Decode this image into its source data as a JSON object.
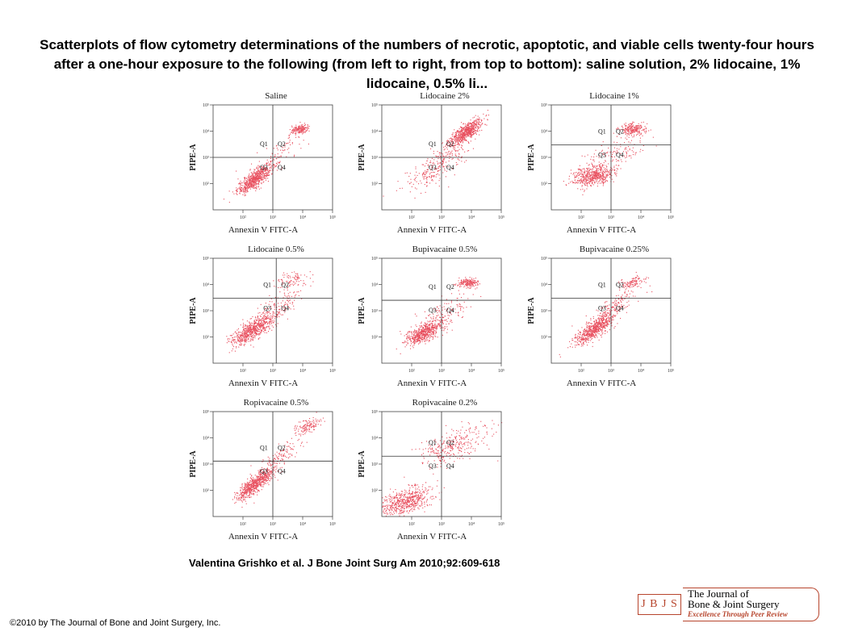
{
  "page": {
    "title": "Scatterplots of flow cytometry determinations of the numbers of necrotic, apoptotic, and viable cells twenty-four hours after a one-hour exposure to the following (from left to right, from top to bottom): saline solution, 2% lidocaine, 1% lidocaine, 0.5% li...",
    "citation": "Valentina Grishko et al. J Bone Joint Surg Am 2010;92:609-618",
    "copyright": "©2010 by The Journal of Bone and Joint Surgery, Inc."
  },
  "logo": {
    "abbr": "J B J S",
    "line1": "The Journal of",
    "line2": "Bone & Joint Surgery",
    "tagline": "Excellence Through Peer Review",
    "color": "#b7452d"
  },
  "colors": {
    "dots": "#e8505f",
    "axes": "#444444"
  },
  "chart_data": [
    {
      "type": "scatter",
      "title": "Saline",
      "xlabel": "Annexin V FITC-A",
      "ylabel": "PIPE-A",
      "x_scale": "log",
      "y_scale": "log",
      "xlim": [
        10,
        100000
      ],
      "ylim": [
        10,
        100000
      ],
      "x_ticks": [
        "10²",
        "10³",
        "10⁴",
        "10⁵"
      ],
      "y_ticks": [
        "10²",
        "10³",
        "10⁴",
        "10⁵"
      ],
      "quadrants": [
        "Q1",
        "Q2",
        "Q3",
        "Q4"
      ],
      "gate": {
        "x": 1000,
        "y": 1000
      },
      "clusters": [
        {
          "x": 250,
          "y": 160,
          "spread": 0.3,
          "share": 0.72,
          "tilt": 0.8
        },
        {
          "x": 8000,
          "y": 12000,
          "spread": 0.16,
          "share": 0.18,
          "tilt": 0.2
        },
        {
          "x": 1500,
          "y": 1300,
          "spread": 0.45,
          "share": 0.1,
          "tilt": 0.9
        }
      ]
    },
    {
      "type": "scatter",
      "title": "Lidocaine 2%",
      "xlabel": "Annexin V FITC-A",
      "ylabel": "PIPE-A",
      "x_scale": "log",
      "y_scale": "log",
      "xlim": [
        10,
        100000
      ],
      "ylim": [
        10,
        100000
      ],
      "x_ticks": [
        "10²",
        "10³",
        "10⁴",
        "10⁵"
      ],
      "y_ticks": [
        "10²",
        "10³",
        "10⁴",
        "10⁵"
      ],
      "quadrants": [
        "Q1",
        "Q2",
        "Q3",
        "Q4"
      ],
      "gate": {
        "x": 1000,
        "y": 1000
      },
      "clusters": [
        {
          "x": 6000,
          "y": 9000,
          "spread": 0.28,
          "share": 0.7,
          "tilt": 0.7
        },
        {
          "x": 700,
          "y": 500,
          "spread": 0.55,
          "share": 0.3,
          "tilt": 0.8
        }
      ]
    },
    {
      "type": "scatter",
      "title": "Lidocaine 1%",
      "xlabel": "Annexin V FITC-A",
      "ylabel": "PIPE-A",
      "x_scale": "log",
      "y_scale": "log",
      "xlim": [
        10,
        100000
      ],
      "ylim": [
        10,
        100000
      ],
      "x_ticks": [
        "10²",
        "10³",
        "10⁴",
        "10⁵"
      ],
      "y_ticks": [
        "10²",
        "10³",
        "10⁴",
        "10⁵"
      ],
      "quadrants": [
        "Q1",
        "Q2",
        "Q3",
        "Q4"
      ],
      "gate": {
        "x": 1000,
        "y": 3000
      },
      "clusters": [
        {
          "x": 250,
          "y": 200,
          "spread": 0.35,
          "share": 0.6,
          "tilt": 0.2
        },
        {
          "x": 5000,
          "y": 12000,
          "spread": 0.22,
          "share": 0.25,
          "tilt": 0.1
        },
        {
          "x": 1500,
          "y": 1500,
          "spread": 0.55,
          "share": 0.15,
          "tilt": 0.4
        }
      ]
    },
    {
      "type": "scatter",
      "title": "Lidocaine 0.5%",
      "xlabel": "Annexin V FITC-A",
      "ylabel": "PIPE-A",
      "x_scale": "log",
      "y_scale": "log",
      "xlim": [
        10,
        100000
      ],
      "ylim": [
        10,
        100000
      ],
      "x_ticks": [
        "10²",
        "10³",
        "10⁴",
        "10⁵"
      ],
      "y_ticks": [
        "10²",
        "10³",
        "10⁴",
        "10⁵"
      ],
      "quadrants": [
        "Q1",
        "Q2",
        "Q3",
        "Q4"
      ],
      "gate": {
        "x": 1300,
        "y": 3000
      },
      "clusters": [
        {
          "x": 200,
          "y": 180,
          "spread": 0.35,
          "share": 0.72,
          "tilt": 0.6
        },
        {
          "x": 1200,
          "y": 1200,
          "spread": 0.45,
          "share": 0.18,
          "tilt": 0.7
        },
        {
          "x": 4000,
          "y": 15000,
          "spread": 0.3,
          "share": 0.1,
          "tilt": 0.2
        }
      ]
    },
    {
      "type": "scatter",
      "title": "Bupivacaine 0.5%",
      "xlabel": "Annexin V FITC-A",
      "ylabel": "PIPE-A",
      "x_scale": "log",
      "y_scale": "log",
      "xlim": [
        10,
        100000
      ],
      "ylim": [
        10,
        100000
      ],
      "x_ticks": [
        "10²",
        "10³",
        "10⁴",
        "10⁵"
      ],
      "y_ticks": [
        "10²",
        "10³",
        "10⁴",
        "10⁵"
      ],
      "quadrants": [
        "Q1",
        "Q2",
        "Q3",
        "Q4"
      ],
      "gate": {
        "x": 1000,
        "y": 2500
      },
      "clusters": [
        {
          "x": 250,
          "y": 150,
          "spread": 0.32,
          "share": 0.65,
          "tilt": 0.5
        },
        {
          "x": 7000,
          "y": 12000,
          "spread": 0.16,
          "share": 0.2,
          "tilt": 0.1
        },
        {
          "x": 1200,
          "y": 900,
          "spread": 0.5,
          "share": 0.15,
          "tilt": 0.6
        }
      ]
    },
    {
      "type": "scatter",
      "title": "Bupivacaine 0.25%",
      "xlabel": "Annexin V FITC-A",
      "ylabel": "PIPE-A",
      "x_scale": "log",
      "y_scale": "log",
      "xlim": [
        10,
        100000
      ],
      "ylim": [
        10,
        100000
      ],
      "x_ticks": [
        "10²",
        "10³",
        "10⁴",
        "10⁵"
      ],
      "y_ticks": [
        "10²",
        "10³",
        "10⁴",
        "10⁵"
      ],
      "quadrants": [
        "Q1",
        "Q2",
        "Q3",
        "Q4"
      ],
      "gate": {
        "x": 1000,
        "y": 3000
      },
      "clusters": [
        {
          "x": 250,
          "y": 200,
          "spread": 0.32,
          "share": 0.7,
          "tilt": 0.7
        },
        {
          "x": 1200,
          "y": 1500,
          "spread": 0.4,
          "share": 0.18,
          "tilt": 0.7
        },
        {
          "x": 5000,
          "y": 12000,
          "spread": 0.2,
          "share": 0.12,
          "tilt": 0.2
        }
      ]
    },
    {
      "type": "scatter",
      "title": "Ropivacaine 0.5%",
      "xlabel": "Annexin V FITC-A",
      "ylabel": "PIPE-A",
      "x_scale": "log",
      "y_scale": "log",
      "xlim": [
        10,
        100000
      ],
      "ylim": [
        10,
        100000
      ],
      "x_ticks": [
        "10²",
        "10³",
        "10⁴",
        "10⁵"
      ],
      "y_ticks": [
        "10²",
        "10³",
        "10⁴",
        "10⁵"
      ],
      "quadrants": [
        "Q1",
        "Q2",
        "Q3",
        "Q4"
      ],
      "gate": {
        "x": 1000,
        "y": 1300
      },
      "clusters": [
        {
          "x": 250,
          "y": 180,
          "spread": 0.3,
          "share": 0.72,
          "tilt": 0.8
        },
        {
          "x": 1800,
          "y": 2000,
          "spread": 0.4,
          "share": 0.14,
          "tilt": 0.8
        },
        {
          "x": 15000,
          "y": 30000,
          "spread": 0.22,
          "share": 0.14,
          "tilt": 0.4
        }
      ]
    },
    {
      "type": "scatter",
      "title": "Ropivacaine 0.2%",
      "xlabel": "Annexin V FITC-A",
      "ylabel": "PIPE-A",
      "x_scale": "log",
      "y_scale": "log",
      "xlim": [
        10,
        100000
      ],
      "ylim": [
        10,
        100000
      ],
      "x_ticks": [
        "10²",
        "10³",
        "10⁴",
        "10⁵"
      ],
      "y_ticks": [
        "10²",
        "10³",
        "10⁴",
        "10⁵"
      ],
      "quadrants": [
        "Q1",
        "Q2",
        "Q3",
        "Q4"
      ],
      "gate": {
        "x": 1000,
        "y": 2000
      },
      "clusters": [
        {
          "x": 60,
          "y": 40,
          "spread": 0.45,
          "share": 0.65,
          "tilt": 0.3
        },
        {
          "x": 2500,
          "y": 5000,
          "spread": 0.6,
          "share": 0.35,
          "tilt": 0.4
        }
      ]
    }
  ]
}
